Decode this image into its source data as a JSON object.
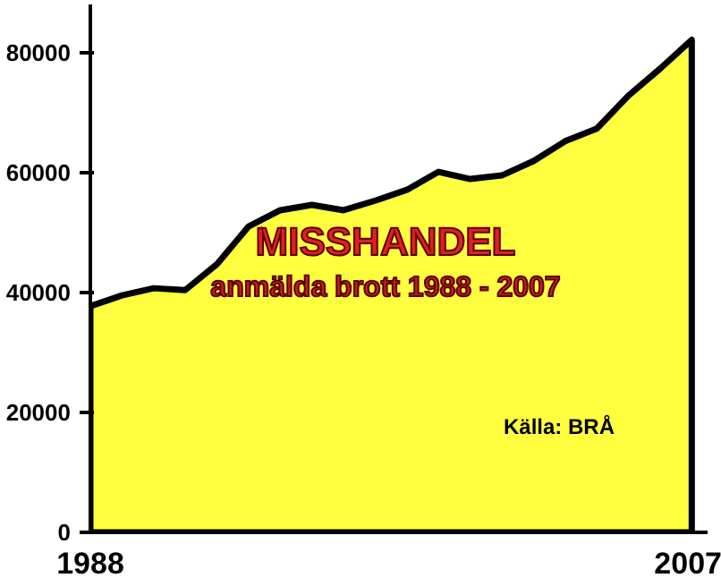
{
  "chart_data": {
    "type": "area",
    "title": "MISSHANDEL",
    "subtitle": "anmälda brott 1988 - 2007",
    "annotations": [
      "Källa: BRÅ"
    ],
    "x": [
      1988,
      1989,
      1990,
      1991,
      1992,
      1993,
      1994,
      1995,
      1996,
      1997,
      1998,
      1999,
      2000,
      2001,
      2002,
      2003,
      2004,
      2005,
      2006,
      2007
    ],
    "series": [
      {
        "color": "#ffff40",
        "values": [
          37700,
          39500,
          40700,
          40400,
          44700,
          51000,
          53700,
          54600,
          53700,
          55300,
          57100,
          60100,
          58900,
          59500,
          61900,
          65200,
          67300,
          72800,
          77300,
          82100
        ]
      }
    ],
    "xlim": [
      1988,
      2007.5
    ],
    "xticks": [
      1988,
      2007
    ],
    "ylim": [
      0,
      88000
    ],
    "yticks": [
      0,
      20000,
      40000,
      60000,
      80000
    ],
    "grid": false
  }
}
